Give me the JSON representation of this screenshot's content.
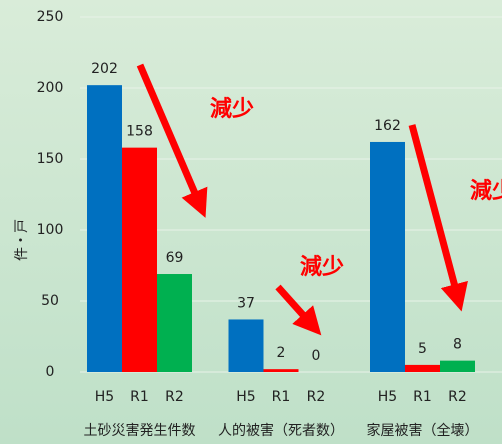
{
  "chart_data": {
    "type": "bar",
    "y_label": "件・戸",
    "categories": [
      "土砂災害発生件数",
      "人的被害（死者数）",
      "家屋被害（全壊）"
    ],
    "series": [
      {
        "name": "H5",
        "color": "#0070c0",
        "values": [
          202,
          37,
          162
        ]
      },
      {
        "name": "R1",
        "color": "#ff0000",
        "values": [
          158,
          2,
          5
        ]
      },
      {
        "name": "R2",
        "color": "#00b050",
        "values": [
          69,
          0,
          8
        ]
      }
    ],
    "ylim": [
      0,
      250
    ],
    "yticks": [
      0,
      50,
      100,
      150,
      200,
      250
    ],
    "grid": true,
    "annotations": [
      "減少",
      "減少",
      "減少"
    ]
  }
}
